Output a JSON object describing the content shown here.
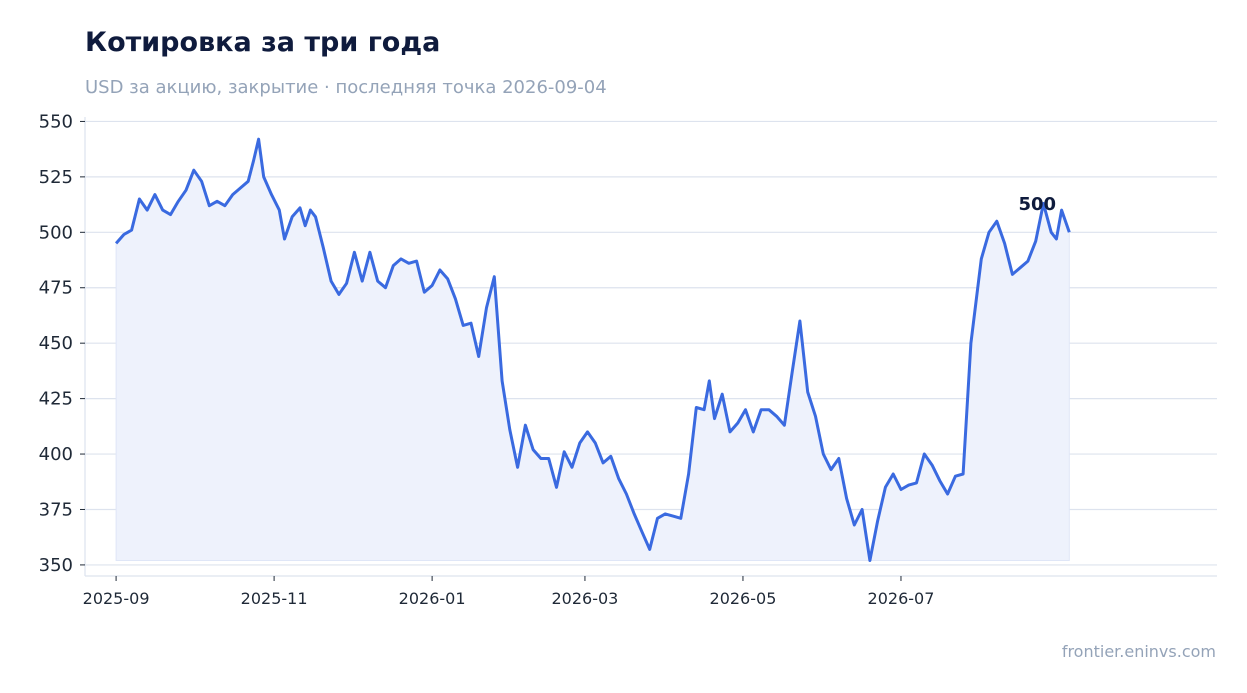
{
  "title": "Котировка за три года",
  "subtitle": "USD за акцию, закрытие · последняя точка 2026-09-04",
  "source": "frontier.eninvs.com",
  "colors": {
    "line": "#3a6ae0",
    "fill": "#eef2fc",
    "grid": "#dde3ee",
    "title": "#0f1b3d"
  },
  "chart_data": {
    "type": "area",
    "title": "Котировка за три года",
    "subtitle": "USD за акцию, закрытие · последняя точка 2026-09-04",
    "xlabel": "",
    "ylabel": "",
    "ylim": [
      345,
      552
    ],
    "xlim": [
      "2025-08-20",
      "2026-10-31"
    ],
    "grid": true,
    "y_ticks": [
      350,
      375,
      400,
      425,
      450,
      475,
      500,
      525,
      550
    ],
    "x_ticks": [
      "2025-09",
      "2025-11",
      "2026-01",
      "2026-03",
      "2026-05",
      "2026-07"
    ],
    "x_tick_dates": [
      "2025-09-01",
      "2025-11-01",
      "2026-01-01",
      "2026-03-01",
      "2026-05-01",
      "2026-07-01"
    ],
    "last_label": "500",
    "series": [
      {
        "points": [
          [
            "2025-09-01",
            495
          ],
          [
            "2025-09-04",
            499
          ],
          [
            "2025-09-07",
            501
          ],
          [
            "2025-09-10",
            515
          ],
          [
            "2025-09-13",
            510
          ],
          [
            "2025-09-16",
            517
          ],
          [
            "2025-09-19",
            510
          ],
          [
            "2025-09-22",
            508
          ],
          [
            "2025-09-25",
            514
          ],
          [
            "2025-09-28",
            519
          ],
          [
            "2025-10-01",
            528
          ],
          [
            "2025-10-04",
            523
          ],
          [
            "2025-10-07",
            512
          ],
          [
            "2025-10-10",
            514
          ],
          [
            "2025-10-13",
            512
          ],
          [
            "2025-10-16",
            517
          ],
          [
            "2025-10-19",
            520
          ],
          [
            "2025-10-22",
            523
          ],
          [
            "2025-10-24",
            532
          ],
          [
            "2025-10-26",
            542
          ],
          [
            "2025-10-28",
            525
          ],
          [
            "2025-10-31",
            517
          ],
          [
            "2025-11-03",
            510
          ],
          [
            "2025-11-05",
            497
          ],
          [
            "2025-11-08",
            507
          ],
          [
            "2025-11-11",
            511
          ],
          [
            "2025-11-13",
            503
          ],
          [
            "2025-11-15",
            510
          ],
          [
            "2025-11-17",
            507
          ],
          [
            "2025-11-20",
            493
          ],
          [
            "2025-11-23",
            478
          ],
          [
            "2025-11-26",
            472
          ],
          [
            "2025-11-29",
            477
          ],
          [
            "2025-12-02",
            491
          ],
          [
            "2025-12-05",
            478
          ],
          [
            "2025-12-08",
            491
          ],
          [
            "2025-12-11",
            478
          ],
          [
            "2025-12-14",
            475
          ],
          [
            "2025-12-17",
            485
          ],
          [
            "2025-12-20",
            488
          ],
          [
            "2025-12-23",
            486
          ],
          [
            "2025-12-26",
            487
          ],
          [
            "2025-12-29",
            473
          ],
          [
            "2026-01-01",
            476
          ],
          [
            "2026-01-04",
            483
          ],
          [
            "2026-01-07",
            479
          ],
          [
            "2026-01-10",
            470
          ],
          [
            "2026-01-13",
            458
          ],
          [
            "2026-01-16",
            459
          ],
          [
            "2026-01-19",
            444
          ],
          [
            "2026-01-22",
            466
          ],
          [
            "2026-01-25",
            480
          ],
          [
            "2026-01-28",
            433
          ],
          [
            "2026-01-31",
            411
          ],
          [
            "2026-02-03",
            394
          ],
          [
            "2026-02-06",
            413
          ],
          [
            "2026-02-09",
            402
          ],
          [
            "2026-02-12",
            398
          ],
          [
            "2026-02-15",
            398
          ],
          [
            "2026-02-18",
            385
          ],
          [
            "2026-02-21",
            401
          ],
          [
            "2026-02-24",
            394
          ],
          [
            "2026-02-27",
            405
          ],
          [
            "2026-03-02",
            410
          ],
          [
            "2026-03-05",
            405
          ],
          [
            "2026-03-08",
            396
          ],
          [
            "2026-03-11",
            399
          ],
          [
            "2026-03-14",
            389
          ],
          [
            "2026-03-17",
            382
          ],
          [
            "2026-03-20",
            373
          ],
          [
            "2026-03-23",
            365
          ],
          [
            "2026-03-26",
            357
          ],
          [
            "2026-03-29",
            371
          ],
          [
            "2026-04-01",
            373
          ],
          [
            "2026-04-04",
            372
          ],
          [
            "2026-04-07",
            371
          ],
          [
            "2026-04-10",
            391
          ],
          [
            "2026-04-13",
            421
          ],
          [
            "2026-04-16",
            420
          ],
          [
            "2026-04-18",
            433
          ],
          [
            "2026-04-20",
            416
          ],
          [
            "2026-04-23",
            427
          ],
          [
            "2026-04-26",
            410
          ],
          [
            "2026-04-29",
            414
          ],
          [
            "2026-05-02",
            420
          ],
          [
            "2026-05-05",
            410
          ],
          [
            "2026-05-08",
            420
          ],
          [
            "2026-05-11",
            420
          ],
          [
            "2026-05-14",
            417
          ],
          [
            "2026-05-17",
            413
          ],
          [
            "2026-05-20",
            437
          ],
          [
            "2026-05-23",
            460
          ],
          [
            "2026-05-26",
            428
          ],
          [
            "2026-05-29",
            417
          ],
          [
            "2026-06-01",
            400
          ],
          [
            "2026-06-04",
            393
          ],
          [
            "2026-06-07",
            398
          ],
          [
            "2026-06-10",
            380
          ],
          [
            "2026-06-13",
            368
          ],
          [
            "2026-06-16",
            375
          ],
          [
            "2026-06-19",
            352
          ],
          [
            "2026-06-22",
            370
          ],
          [
            "2026-06-25",
            385
          ],
          [
            "2026-06-28",
            391
          ],
          [
            "2026-07-01",
            384
          ],
          [
            "2026-07-04",
            386
          ],
          [
            "2026-07-07",
            387
          ],
          [
            "2026-07-10",
            400
          ],
          [
            "2026-07-13",
            395
          ],
          [
            "2026-07-16",
            388
          ],
          [
            "2026-07-19",
            382
          ],
          [
            "2026-07-22",
            390
          ],
          [
            "2026-07-25",
            391
          ],
          [
            "2026-07-28",
            450
          ],
          [
            "2026-08-01",
            488
          ],
          [
            "2026-08-04",
            500
          ],
          [
            "2026-08-07",
            505
          ],
          [
            "2026-08-10",
            495
          ],
          [
            "2026-08-13",
            481
          ],
          [
            "2026-08-16",
            484
          ],
          [
            "2026-08-19",
            487
          ],
          [
            "2026-08-22",
            496
          ],
          [
            "2026-08-25",
            513
          ],
          [
            "2026-08-28",
            500
          ],
          [
            "2026-08-30",
            497
          ],
          [
            "2026-09-01",
            510
          ],
          [
            "2026-09-04",
            500
          ]
        ]
      }
    ]
  }
}
